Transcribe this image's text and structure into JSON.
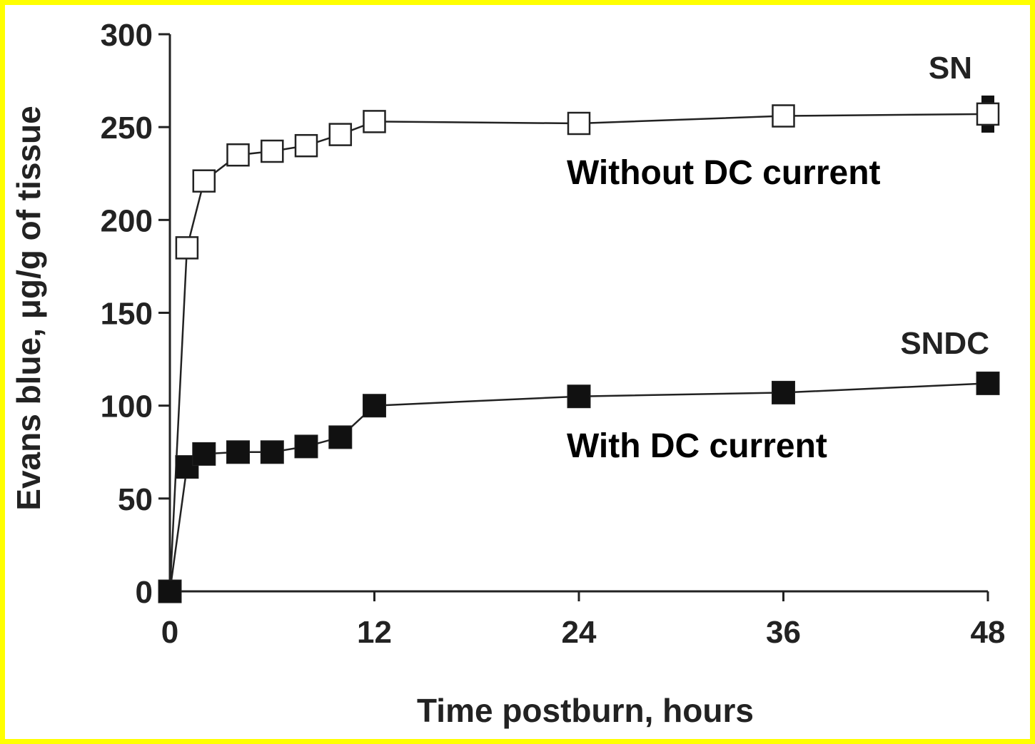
{
  "chart_data": {
    "type": "line",
    "xlabel": "Time postburn, hours",
    "ylabel": "Evans blue, μg/g of tissue",
    "xlim": [
      0,
      48
    ],
    "ylim": [
      0,
      300
    ],
    "x_ticks": [
      0,
      12,
      24,
      36,
      48
    ],
    "y_ticks": [
      0,
      50,
      100,
      150,
      200,
      250,
      300
    ],
    "grid": false,
    "series": [
      {
        "name": "SN",
        "marker": "open-square",
        "annotation": "Without DC current",
        "x": [
          0,
          1,
          2,
          4,
          6,
          8,
          10,
          12,
          24,
          36,
          48
        ],
        "values": [
          0,
          185,
          221,
          235,
          237,
          240,
          246,
          253,
          252,
          256,
          257
        ]
      },
      {
        "name": "SNDC",
        "marker": "filled-square",
        "annotation": "With DC current",
        "x": [
          0,
          1,
          2,
          4,
          6,
          8,
          10,
          12,
          24,
          36,
          48
        ],
        "values": [
          0,
          67,
          74,
          75,
          75,
          78,
          83,
          100,
          105,
          107,
          112
        ]
      }
    ]
  }
}
